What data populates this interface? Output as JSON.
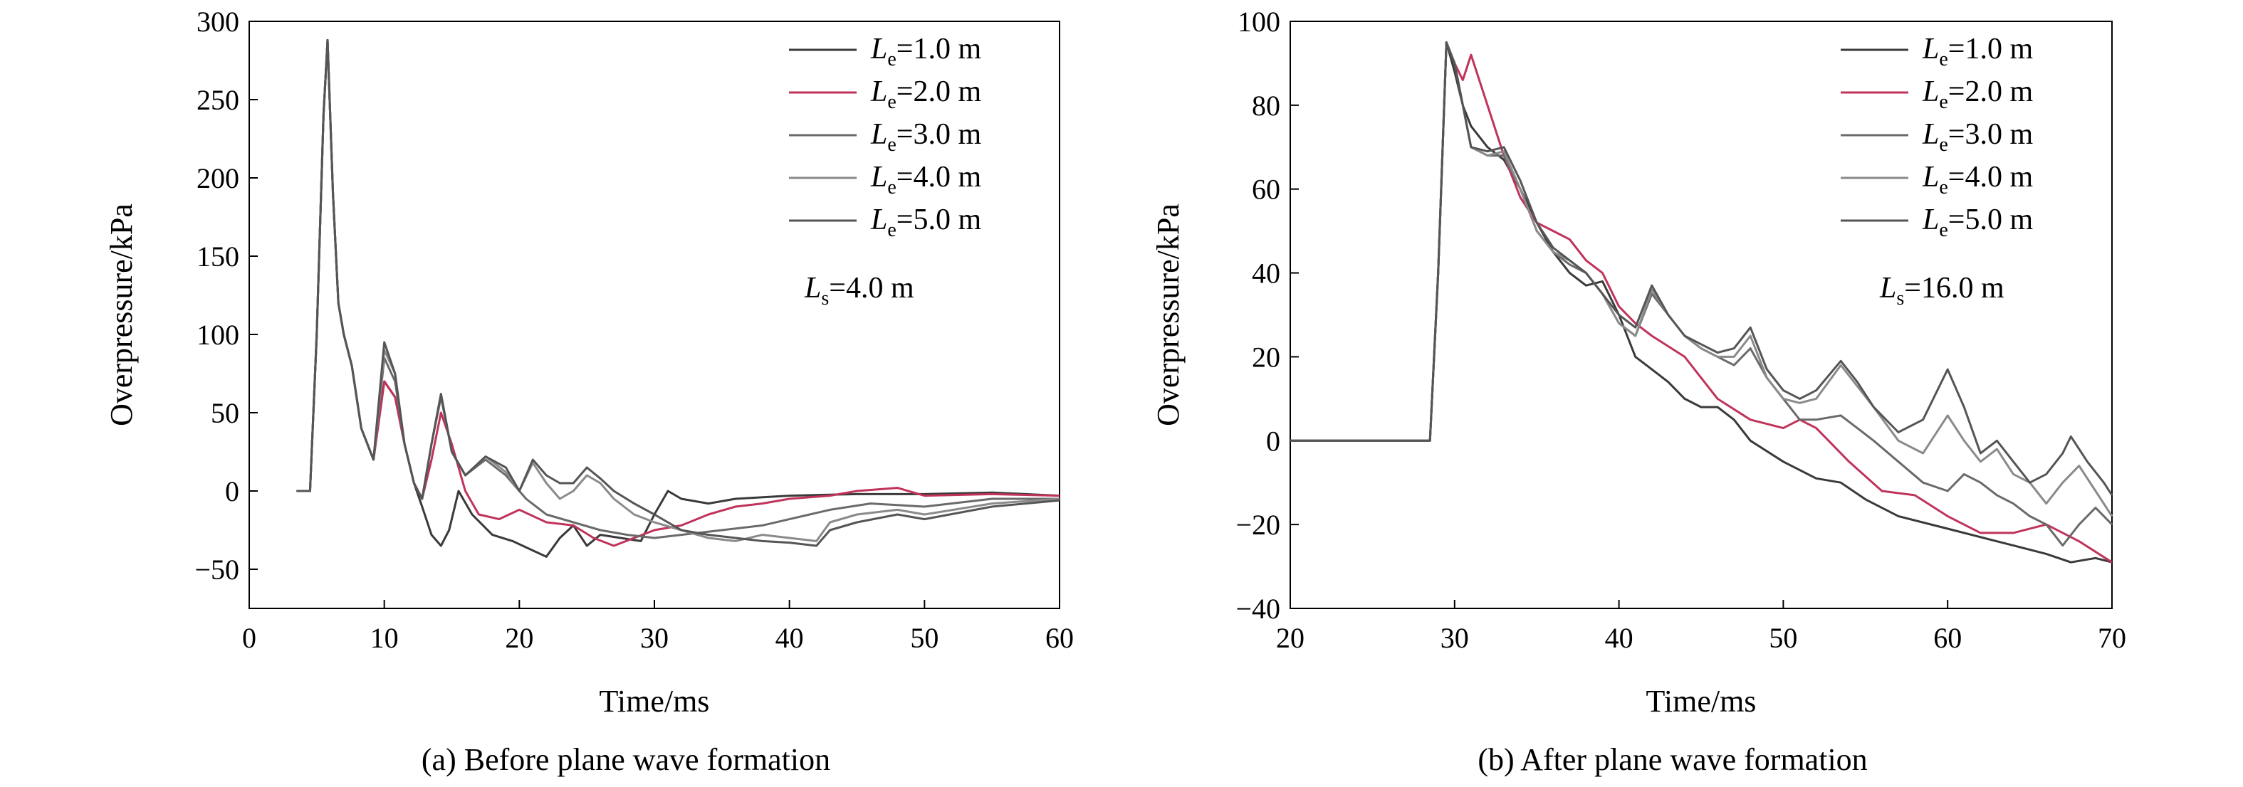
{
  "chart_data": [
    {
      "type": "line",
      "caption": "(a) Before plane wave formation",
      "xlabel": "Time/ms",
      "ylabel": "Overpressure/kPa",
      "xlim": [
        0,
        60
      ],
      "ylim": [
        -75,
        300
      ],
      "xticks": [
        0,
        10,
        20,
        30,
        40,
        50,
        60
      ],
      "yticks": [
        -50,
        0,
        50,
        100,
        150,
        200,
        250,
        300
      ],
      "ytick_labels": [
        "−50",
        "0",
        "50",
        "100",
        "150",
        "200",
        "250",
        "300"
      ],
      "annotation": {
        "var": "L",
        "sub": "s",
        "rest": "=4.0 m"
      },
      "legend_position": "top-right",
      "series": [
        {
          "var": "L",
          "sub": "e",
          "rest": "=1.0 m",
          "color": "#3a3a3a",
          "x": [
            3.5,
            4.5,
            5.0,
            5.5,
            5.8,
            6.2,
            6.6,
            7.0,
            7.6,
            8.3,
            9.2,
            10.0,
            10.8,
            11.5,
            12.2,
            12.8,
            13.5,
            14.2,
            14.8,
            15.5,
            16.5,
            18.0,
            19.5,
            21.0,
            22.0,
            23.0,
            24.0,
            25.0,
            26.0,
            27.5,
            29.0,
            30.0,
            31.0,
            32.0,
            34.0,
            36.0,
            40.0,
            45.0,
            50.0,
            55.0,
            60.0
          ],
          "y": [
            0,
            0,
            100,
            240,
            288,
            190,
            120,
            100,
            80,
            40,
            20,
            70,
            60,
            30,
            5,
            -10,
            -28,
            -35,
            -25,
            0,
            -15,
            -28,
            -32,
            -38,
            -42,
            -30,
            -22,
            -35,
            -28,
            -30,
            -32,
            -15,
            0,
            -5,
            -8,
            -5,
            -3,
            -2,
            -2,
            -1,
            -3
          ]
        },
        {
          "var": "L",
          "sub": "e",
          "rest": "=2.0 m",
          "color": "#c0335a",
          "x": [
            3.5,
            4.5,
            5.0,
            5.5,
            5.8,
            6.2,
            6.6,
            7.0,
            7.6,
            8.3,
            9.2,
            10.0,
            10.8,
            11.5,
            12.2,
            12.8,
            13.5,
            14.2,
            15.0,
            16.0,
            17.0,
            18.5,
            20.0,
            22.0,
            24.0,
            25.5,
            27.0,
            28.5,
            30.0,
            32.0,
            34.0,
            36.0,
            38.0,
            40.0,
            43.0,
            45.0,
            48.0,
            50.0,
            55.0,
            60.0
          ],
          "y": [
            0,
            0,
            100,
            240,
            288,
            190,
            120,
            100,
            80,
            40,
            20,
            70,
            60,
            30,
            5,
            -5,
            20,
            50,
            30,
            0,
            -15,
            -18,
            -12,
            -20,
            -22,
            -30,
            -35,
            -30,
            -25,
            -22,
            -15,
            -10,
            -8,
            -5,
            -3,
            0,
            2,
            -3,
            -2,
            -3
          ]
        },
        {
          "var": "L",
          "sub": "e",
          "rest": "=3.0 m",
          "color": "#6a6a6a",
          "x": [
            3.5,
            4.5,
            5.0,
            5.5,
            5.8,
            6.2,
            6.6,
            7.0,
            7.6,
            8.3,
            9.2,
            10.0,
            10.8,
            11.5,
            12.2,
            12.8,
            13.5,
            14.2,
            15.0,
            16.0,
            17.5,
            19.0,
            20.5,
            22.0,
            24.0,
            26.0,
            28.0,
            30.0,
            32.0,
            35.0,
            38.0,
            40.0,
            43.0,
            46.0,
            50.0,
            55.0,
            60.0
          ],
          "y": [
            0,
            0,
            100,
            240,
            288,
            190,
            120,
            100,
            80,
            40,
            20,
            85,
            70,
            30,
            5,
            -5,
            30,
            60,
            25,
            10,
            20,
            10,
            -5,
            -15,
            -20,
            -25,
            -28,
            -30,
            -28,
            -25,
            -22,
            -18,
            -12,
            -8,
            -10,
            -5,
            -5
          ]
        },
        {
          "var": "L",
          "sub": "e",
          "rest": "=4.0 m",
          "color": "#8a8a8a",
          "x": [
            3.5,
            4.5,
            5.0,
            5.5,
            5.8,
            6.2,
            6.6,
            7.0,
            7.6,
            8.3,
            9.2,
            10.0,
            10.8,
            11.5,
            12.2,
            12.8,
            13.5,
            14.2,
            15.0,
            16.0,
            17.5,
            19.0,
            20.0,
            21.0,
            22.0,
            23.0,
            24.0,
            25.0,
            26.0,
            27.0,
            28.5,
            30.0,
            32.0,
            34.0,
            36.0,
            38.0,
            40.0,
            42.0,
            43.0,
            45.0,
            48.0,
            50.0,
            55.0,
            60.0
          ],
          "y": [
            0,
            0,
            100,
            240,
            288,
            190,
            120,
            100,
            80,
            40,
            20,
            90,
            75,
            30,
            5,
            -5,
            30,
            62,
            25,
            10,
            22,
            12,
            0,
            18,
            5,
            -5,
            0,
            10,
            5,
            -5,
            -15,
            -20,
            -25,
            -30,
            -32,
            -28,
            -30,
            -32,
            -20,
            -15,
            -12,
            -15,
            -8,
            -5
          ]
        },
        {
          "var": "L",
          "sub": "e",
          "rest": "=5.0 m",
          "color": "#555555",
          "x": [
            3.5,
            4.5,
            5.0,
            5.5,
            5.8,
            6.2,
            6.6,
            7.0,
            7.6,
            8.3,
            9.2,
            10.0,
            10.8,
            11.5,
            12.2,
            12.8,
            13.5,
            14.2,
            15.0,
            16.0,
            17.5,
            19.0,
            20.0,
            21.0,
            22.0,
            23.0,
            24.0,
            25.0,
            26.0,
            27.0,
            28.5,
            30.0,
            32.0,
            34.0,
            36.0,
            38.0,
            40.0,
            42.0,
            43.0,
            45.0,
            48.0,
            50.0,
            55.0,
            60.0
          ],
          "y": [
            0,
            0,
            100,
            240,
            288,
            190,
            120,
            100,
            80,
            40,
            20,
            95,
            75,
            30,
            5,
            -5,
            30,
            62,
            25,
            10,
            22,
            15,
            0,
            20,
            10,
            5,
            5,
            15,
            8,
            0,
            -8,
            -15,
            -25,
            -28,
            -30,
            -32,
            -33,
            -35,
            -25,
            -20,
            -15,
            -18,
            -10,
            -6
          ]
        }
      ]
    },
    {
      "type": "line",
      "caption": "(b) After plane wave formation",
      "xlabel": "Time/ms",
      "ylabel": "Overpressure/kPa",
      "xlim": [
        20,
        70
      ],
      "ylim": [
        -40,
        100
      ],
      "xticks": [
        20,
        30,
        40,
        50,
        60,
        70
      ],
      "yticks": [
        -40,
        -20,
        0,
        20,
        40,
        60,
        80,
        100
      ],
      "ytick_labels": [
        "−40",
        "−20",
        "0",
        "20",
        "40",
        "60",
        "80",
        "100"
      ],
      "annotation": {
        "var": "L",
        "sub": "s",
        "rest": "=16.0 m"
      },
      "legend_position": "top-right",
      "series": [
        {
          "var": "L",
          "sub": "e",
          "rest": "=1.0 m",
          "color": "#3a3a3a",
          "x": [
            20,
            28.5,
            29.0,
            29.5,
            30.0,
            30.5,
            31.0,
            32.0,
            33.0,
            34.0,
            35.0,
            36.0,
            37.0,
            38.0,
            39.0,
            40.0,
            41.0,
            42.0,
            43.0,
            44.0,
            45.0,
            46.0,
            47.0,
            48.0,
            50.0,
            52.0,
            53.5,
            55.0,
            57.0,
            60.0,
            62.0,
            64.0,
            66.0,
            67.5,
            69.0,
            70.0
          ],
          "y": [
            0,
            0,
            40,
            95,
            88,
            80,
            75,
            70,
            67,
            60,
            52,
            45,
            40,
            37,
            38,
            30,
            20,
            17,
            14,
            10,
            8,
            8,
            5,
            0,
            -5,
            -9,
            -10,
            -14,
            -18,
            -21,
            -23,
            -25,
            -27,
            -29,
            -28,
            -29
          ]
        },
        {
          "var": "L",
          "sub": "e",
          "rest": "=2.0 m",
          "color": "#c0335a",
          "x": [
            20,
            28.5,
            29.0,
            29.5,
            30.0,
            30.5,
            31.0,
            32.0,
            33.0,
            34.0,
            35.0,
            36.0,
            37.0,
            38.0,
            39.0,
            40.0,
            41.0,
            42.0,
            44.0,
            46.0,
            48.0,
            50.0,
            51.0,
            52.0,
            54.0,
            56.0,
            58.0,
            60.0,
            62.0,
            64.0,
            66.0,
            68.0,
            70.0
          ],
          "y": [
            0,
            0,
            40,
            95,
            90,
            86,
            92,
            80,
            68,
            58,
            52,
            50,
            48,
            43,
            40,
            32,
            28,
            25,
            20,
            10,
            5,
            3,
            5,
            3,
            -5,
            -12,
            -13,
            -18,
            -22,
            -22,
            -20,
            -24,
            -29
          ]
        },
        {
          "var": "L",
          "sub": "e",
          "rest": "=3.0 m",
          "color": "#6a6a6a",
          "x": [
            20,
            28.5,
            29.0,
            29.5,
            30.0,
            31.0,
            32.0,
            33.0,
            34.0,
            35.0,
            36.0,
            37.0,
            38.0,
            39.0,
            40.0,
            41.0,
            42.0,
            43.0,
            44.0,
            45.0,
            46.0,
            47.0,
            48.0,
            49.0,
            50.0,
            51.0,
            52.0,
            53.5,
            54.5,
            55.5,
            57.0,
            58.5,
            60.0,
            61.0,
            62.0,
            63.0,
            64.0,
            65.0,
            66.0,
            67.0,
            68.0,
            69.0,
            70.0
          ],
          "y": [
            0,
            0,
            40,
            95,
            90,
            70,
            68,
            68,
            60,
            50,
            45,
            42,
            40,
            35,
            28,
            25,
            35,
            30,
            25,
            22,
            20,
            18,
            22,
            15,
            10,
            5,
            5,
            6,
            3,
            0,
            -5,
            -10,
            -12,
            -8,
            -10,
            -13,
            -15,
            -18,
            -20,
            -25,
            -20,
            -16,
            -20
          ]
        },
        {
          "var": "L",
          "sub": "e",
          "rest": "=4.0 m",
          "color": "#8a8a8a",
          "x": [
            20,
            28.5,
            29.0,
            29.5,
            30.0,
            31.0,
            32.0,
            33.0,
            34.0,
            35.0,
            36.0,
            37.0,
            38.0,
            39.0,
            40.0,
            41.0,
            42.0,
            43.0,
            44.0,
            45.0,
            46.0,
            47.0,
            48.0,
            49.0,
            50.0,
            51.0,
            52.0,
            53.5,
            54.5,
            55.5,
            57.0,
            58.5,
            60.0,
            61.0,
            62.0,
            63.0,
            64.0,
            65.0,
            66.0,
            67.0,
            68.0,
            69.0,
            70.0
          ],
          "y": [
            0,
            0,
            40,
            95,
            90,
            70,
            68,
            69,
            60,
            50,
            45,
            43,
            40,
            35,
            28,
            25,
            36,
            30,
            25,
            22,
            20,
            20,
            25,
            15,
            10,
            9,
            10,
            18,
            13,
            8,
            0,
            -3,
            6,
            0,
            -5,
            -2,
            -8,
            -10,
            -15,
            -10,
            -6,
            -12,
            -18
          ]
        },
        {
          "var": "L",
          "sub": "e",
          "rest": "=5.0 m",
          "color": "#555555",
          "x": [
            20,
            28.5,
            29.0,
            29.5,
            30.0,
            31.0,
            32.0,
            33.0,
            34.0,
            35.0,
            36.0,
            37.0,
            38.0,
            39.0,
            40.0,
            41.0,
            42.0,
            43.0,
            44.0,
            45.0,
            46.0,
            47.0,
            48.0,
            49.0,
            50.0,
            51.0,
            52.0,
            53.5,
            54.5,
            55.5,
            57.0,
            58.5,
            60.0,
            61.0,
            62.0,
            63.0,
            64.0,
            65.0,
            66.0,
            67.0,
            67.5,
            68.5,
            69.5,
            70.0
          ],
          "y": [
            0,
            0,
            40,
            95,
            90,
            70,
            69,
            70,
            62,
            52,
            46,
            43,
            40,
            35,
            30,
            27,
            37,
            30,
            25,
            23,
            21,
            22,
            27,
            17,
            12,
            10,
            12,
            19,
            14,
            8,
            2,
            5,
            17,
            8,
            -3,
            0,
            -5,
            -10,
            -8,
            -3,
            1,
            -5,
            -10,
            -13
          ]
        }
      ]
    }
  ]
}
